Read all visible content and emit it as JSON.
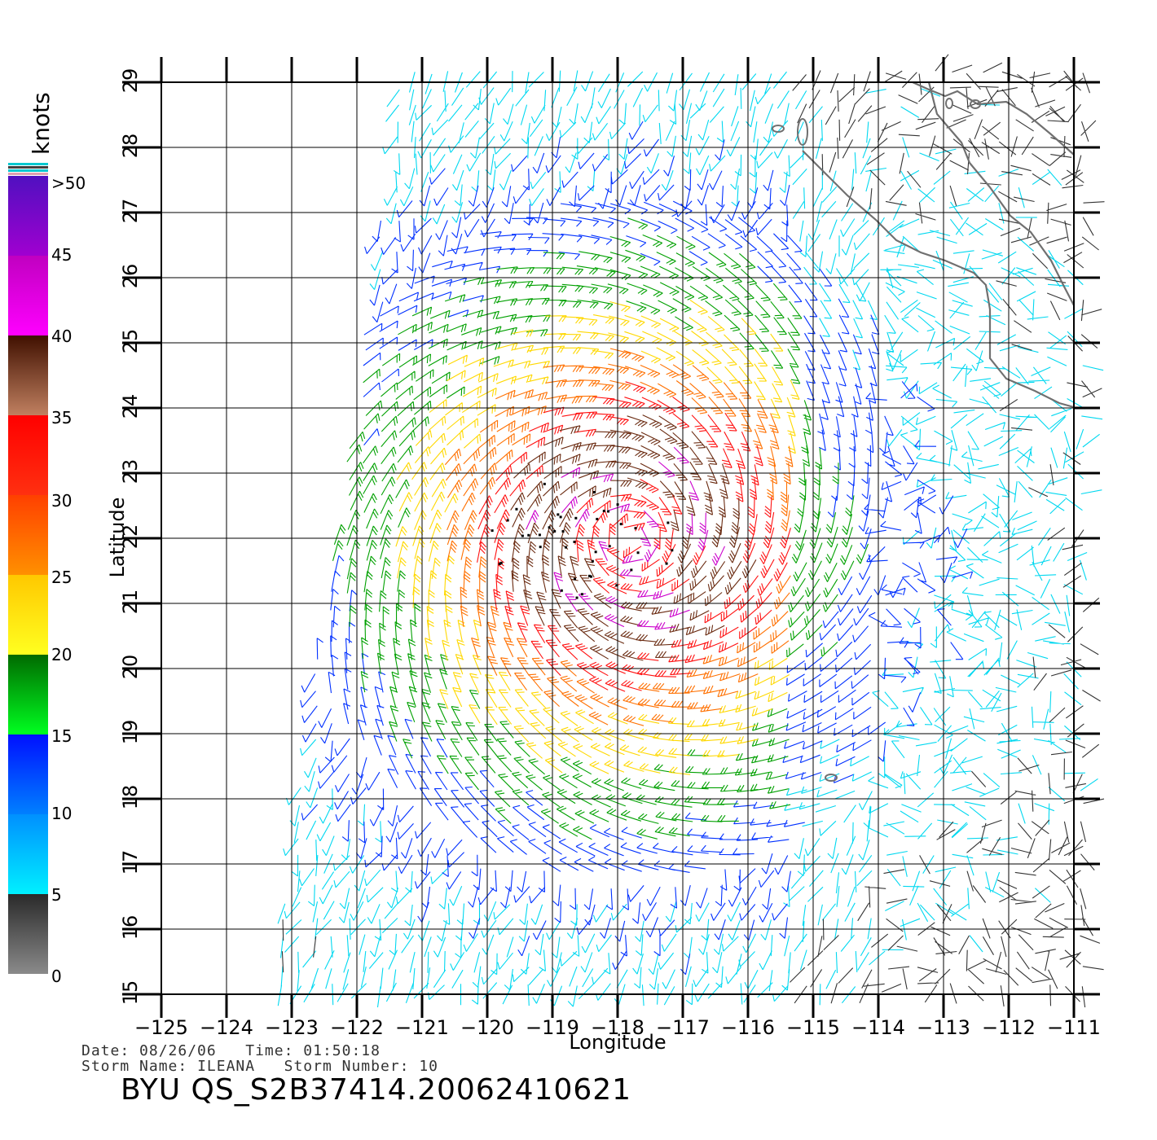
{
  "colorbar": {
    "unit": "knots",
    "labels": [
      ">50",
      "45",
      "40",
      "35",
      "30",
      "25",
      "20",
      "15",
      "10",
      "5",
      "0"
    ],
    "bands": [
      {
        "from": 0,
        "to": 5,
        "top": "#2a2a2a",
        "bottom": "#8a8a8a"
      },
      {
        "from": 5,
        "to": 10,
        "top": "#0090ff",
        "bottom": "#00f0ff"
      },
      {
        "from": 10,
        "to": 15,
        "top": "#0010ff",
        "bottom": "#0080ff"
      },
      {
        "from": 15,
        "to": 20,
        "top": "#006a00",
        "bottom": "#00ff20"
      },
      {
        "from": 20,
        "to": 25,
        "top": "#ffc800",
        "bottom": "#ffff20"
      },
      {
        "from": 25,
        "to": 30,
        "top": "#ff4000",
        "bottom": "#ff9000"
      },
      {
        "from": 30,
        "to": 35,
        "top": "#ff0000",
        "bottom": "#ff3010"
      },
      {
        "from": 35,
        "to": 40,
        "top": "#401000",
        "bottom": "#c08060"
      },
      {
        "from": 40,
        "to": 45,
        "top": "#c000c0",
        "bottom": "#ff00ff"
      },
      {
        "from": 45,
        "to": 50,
        "top": "#5010c0",
        "bottom": "#a000d0"
      }
    ]
  },
  "map": {
    "lon_range": [
      -125,
      -111
    ],
    "lat_range": [
      15,
      29
    ],
    "lon_ticks": [
      -125,
      -124,
      -123,
      -122,
      -121,
      -120,
      -119,
      -118,
      -117,
      -116,
      -115,
      -114,
      -113,
      -112,
      -111
    ],
    "lon_tick_labels": [
      "−125",
      "−124",
      "−123",
      "−122",
      "−121",
      "−120",
      "−119",
      "−118",
      "−117",
      "−116",
      "−115",
      "−114",
      "−113",
      "−112",
      "−111"
    ],
    "lat_ticks": [
      15,
      16,
      17,
      18,
      19,
      20,
      21,
      22,
      23,
      24,
      25,
      26,
      27,
      28,
      29
    ],
    "lat_tick_labels": [
      "15",
      "16",
      "17",
      "18",
      "19",
      "20",
      "21",
      "22",
      "23",
      "24",
      "25",
      "26",
      "27",
      "28",
      "29"
    ],
    "xlabel": "Longitude",
    "ylabel": "Latitude",
    "storm_center": {
      "lon": -117.8,
      "lat": 22.0
    },
    "swath_west_edge": [
      [
        -123.5,
        15.0
      ],
      [
        -121.5,
        29.0
      ]
    ],
    "coast_color": "#707070"
  },
  "footer": {
    "date_label": "Date:",
    "date": "08/26/06",
    "time_label": "Time:",
    "time": "01:50:18",
    "storm_name_label": "Storm Name:",
    "storm_name": "ILEANA",
    "storm_number_label": "Storm Number:",
    "storm_number": "10",
    "file_id": "BYU QS_S2B37414.20062410621"
  }
}
